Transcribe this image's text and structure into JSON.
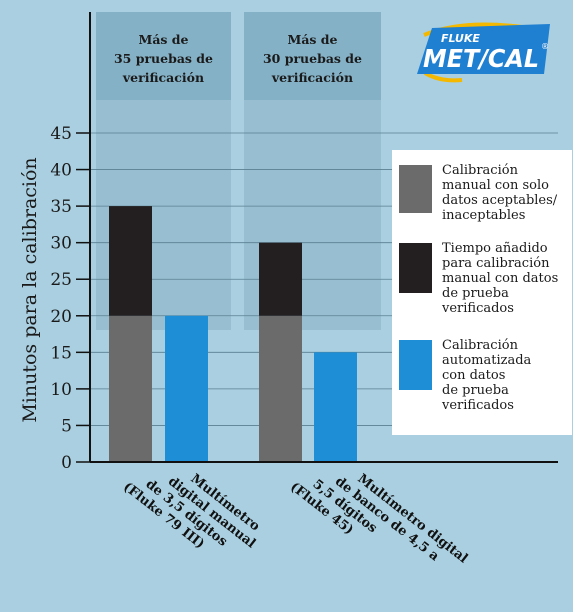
{
  "brand": {
    "small": "FLUKE",
    "main": "MET/CAL",
    "mark": "®",
    "colors": {
      "fill": "#1f7fd1",
      "text": "#ffffff",
      "swoosh": "#f5b800"
    }
  },
  "chart_data": {
    "type": "bar",
    "stacked": true,
    "title": "",
    "xlabel": "",
    "ylabel": "Minutos para la calibración",
    "ylim": [
      0,
      45
    ],
    "yticks": [
      0,
      5,
      10,
      15,
      20,
      25,
      30,
      35,
      40,
      45
    ],
    "grid": true,
    "legend_placement": "right",
    "groups": [
      {
        "band_label": [
          "Más de",
          "35 pruebas de",
          "verificación"
        ],
        "categories": [
          [
            "Multímetro",
            "digital manual",
            "de 3,5 dígitos",
            "(Fluke 79 III)"
          ],
          []
        ]
      },
      {
        "band_label": [
          "Más de",
          "30 pruebas de",
          "verificación"
        ],
        "categories": [
          [
            "Multímetro digital",
            "de banco de 4,5 a",
            "5,5 dígitos",
            "(Fluke 45)"
          ],
          []
        ]
      }
    ],
    "series": [
      {
        "name": [
          "Calibración",
          "manual con solo",
          "datos aceptables/",
          "inaceptables"
        ],
        "color": "#6b6b6b",
        "values": [
          20,
          null,
          20,
          null
        ]
      },
      {
        "name": [
          "Tiempo añadido",
          "para calibración",
          "manual con datos",
          "de prueba",
          "verificados"
        ],
        "color": "#231f20",
        "values": [
          15,
          null,
          10,
          null
        ]
      },
      {
        "name": [
          "Calibración",
          "automatizada",
          "con datos",
          "de prueba",
          "verificados"
        ],
        "color": "#1e8fd6",
        "values": [
          null,
          20,
          null,
          15
        ]
      }
    ]
  }
}
